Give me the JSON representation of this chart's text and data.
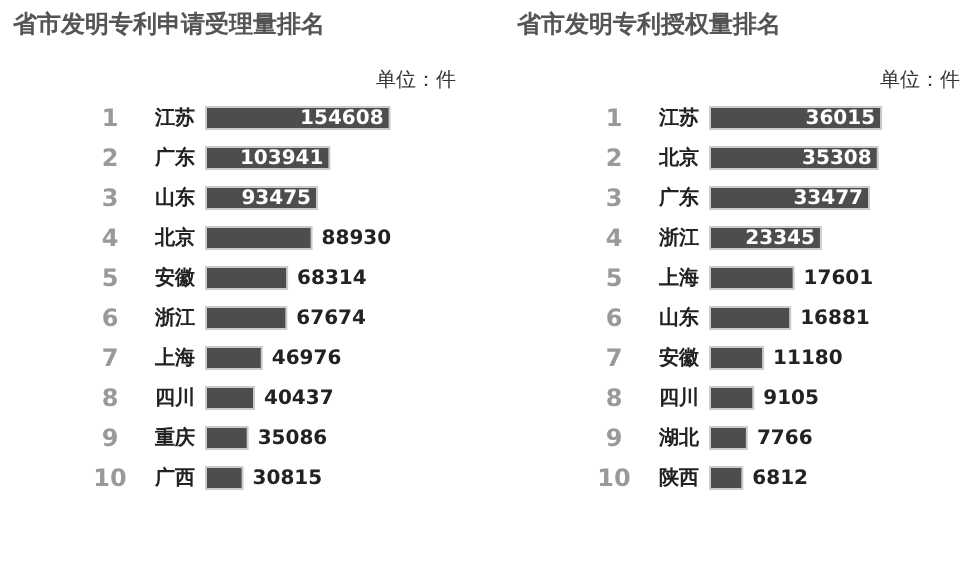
{
  "chart_data": [
    {
      "type": "bar",
      "orientation": "horizontal",
      "title": "省市发明专利申请受理量排名",
      "categories": [
        "江苏",
        "广东",
        "山东",
        "北京",
        "安徽",
        "浙江",
        "上海",
        "四川",
        "重庆",
        "广西"
      ],
      "values": [
        154608,
        103941,
        93475,
        88930,
        68314,
        67674,
        46976,
        40437,
        35086,
        30815
      ],
      "color": "#4d4d4d",
      "data_labels": true,
      "tick_labels": "y",
      "annotations": [
        "单位：件",
        "1",
        "2",
        "3",
        "4",
        "5",
        "6",
        "7",
        "8",
        "9",
        "10"
      ]
    },
    {
      "type": "bar",
      "orientation": "horizontal",
      "title": "省市发明专利授权量排名",
      "categories": [
        "江苏",
        "北京",
        "广东",
        "浙江",
        "上海",
        "山东",
        "安徽",
        "四川",
        "湖北",
        "陕西"
      ],
      "values": [
        36015,
        35308,
        33477,
        23345,
        17601,
        16881,
        11180,
        9105,
        7766,
        6812
      ],
      "color": "#4d4d4d",
      "data_labels": true,
      "tick_labels": "y",
      "annotations": [
        "单位：件",
        "1",
        "2",
        "3",
        "4",
        "5",
        "6",
        "7",
        "8",
        "9",
        "10"
      ]
    }
  ]
}
